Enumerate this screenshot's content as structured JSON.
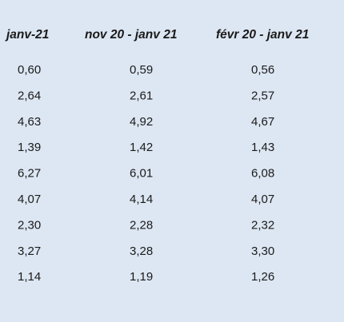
{
  "table": {
    "header": [
      "janv-21",
      "nov 20 - janv 21",
      "févr 20 - janv 21"
    ],
    "rows": [
      [
        "0,60",
        "0,59",
        "0,56"
      ],
      [
        "2,64",
        "2,61",
        "2,57"
      ],
      [
        "4,63",
        "4,92",
        "4,67"
      ],
      [
        "1,39",
        "1,42",
        "1,43"
      ],
      [
        "6,27",
        "6,01",
        "6,08"
      ],
      [
        "4,07",
        "4,14",
        "4,07"
      ],
      [
        "2,30",
        "2,28",
        "2,32"
      ],
      [
        "3,27",
        "3,28",
        "3,30"
      ],
      [
        "1,14",
        "1,19",
        "1,26"
      ]
    ]
  }
}
